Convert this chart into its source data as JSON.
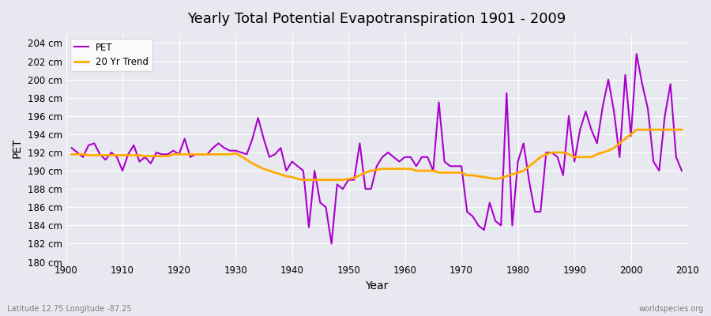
{
  "title": "Yearly Total Potential Evapotranspiration 1901 - 2009",
  "xlabel": "Year",
  "ylabel": "PET",
  "subtitle_left": "Latitude 12.75 Longitude -87.25",
  "subtitle_right": "worldspecies.org",
  "pet_color": "#aa00cc",
  "trend_color": "#ffaa00",
  "bg_color": "#e8e8f0",
  "plot_bg_color": "#e8e8f0",
  "ylim": [
    180,
    205
  ],
  "ytick_step": 2,
  "years": [
    1901,
    1902,
    1903,
    1904,
    1905,
    1906,
    1907,
    1908,
    1909,
    1910,
    1911,
    1912,
    1913,
    1914,
    1915,
    1916,
    1917,
    1918,
    1919,
    1920,
    1921,
    1922,
    1923,
    1924,
    1925,
    1926,
    1927,
    1928,
    1929,
    1930,
    1931,
    1932,
    1933,
    1934,
    1935,
    1936,
    1937,
    1938,
    1939,
    1940,
    1941,
    1942,
    1943,
    1944,
    1945,
    1946,
    1947,
    1948,
    1949,
    1950,
    1951,
    1952,
    1953,
    1954,
    1955,
    1956,
    1957,
    1958,
    1959,
    1960,
    1961,
    1962,
    1963,
    1964,
    1965,
    1966,
    1967,
    1968,
    1969,
    1970,
    1971,
    1972,
    1973,
    1974,
    1975,
    1976,
    1977,
    1978,
    1979,
    1980,
    1981,
    1982,
    1983,
    1984,
    1985,
    1986,
    1987,
    1988,
    1989,
    1990,
    1991,
    1992,
    1993,
    1994,
    1995,
    1996,
    1997,
    1998,
    1999,
    2000,
    2001,
    2002,
    2003,
    2004,
    2005,
    2006,
    2007,
    2008,
    2009
  ],
  "pet_values": [
    192.5,
    192.0,
    191.5,
    192.8,
    193.0,
    191.8,
    191.2,
    192.0,
    191.5,
    190.0,
    191.8,
    192.8,
    191.0,
    191.5,
    190.8,
    192.0,
    191.8,
    191.8,
    192.2,
    191.8,
    193.5,
    191.5,
    191.8,
    191.8,
    191.8,
    192.5,
    193.0,
    192.5,
    192.2,
    192.2,
    192.0,
    191.8,
    193.5,
    195.8,
    193.5,
    191.5,
    191.8,
    192.5,
    190.0,
    191.0,
    190.5,
    190.0,
    183.8,
    190.0,
    186.5,
    186.0,
    182.0,
    188.5,
    188.0,
    189.0,
    189.0,
    193.0,
    188.0,
    188.0,
    190.5,
    191.5,
    192.0,
    191.5,
    191.0,
    191.5,
    191.5,
    190.5,
    191.5,
    191.5,
    190.0,
    197.5,
    191.0,
    190.5,
    190.5,
    190.5,
    185.5,
    185.0,
    184.0,
    183.5,
    186.5,
    184.5,
    184.0,
    198.5,
    184.0,
    191.0,
    193.0,
    188.8,
    185.5,
    185.5,
    192.0,
    192.0,
    191.5,
    189.5,
    196.0,
    191.0,
    194.5,
    196.5,
    194.5,
    193.0,
    197.0,
    200.0,
    196.5,
    191.5,
    200.5,
    193.8,
    202.8,
    199.5,
    196.8,
    191.0,
    190.0,
    196.0,
    199.5,
    191.5,
    190.0
  ],
  "trend_values": [
    191.8,
    191.8,
    191.8,
    191.7,
    191.7,
    191.7,
    191.7,
    191.7,
    191.7,
    191.7,
    191.7,
    191.7,
    191.7,
    191.6,
    191.6,
    191.6,
    191.6,
    191.6,
    191.8,
    191.8,
    191.8,
    191.8,
    191.8,
    191.8,
    191.8,
    191.8,
    191.8,
    191.8,
    191.8,
    191.9,
    191.6,
    191.2,
    190.8,
    190.5,
    190.2,
    190.0,
    189.8,
    189.6,
    189.4,
    189.3,
    189.1,
    189.0,
    189.0,
    189.0,
    189.0,
    189.0,
    189.0,
    189.0,
    189.0,
    189.1,
    189.2,
    189.5,
    189.8,
    190.0,
    190.1,
    190.2,
    190.2,
    190.2,
    190.2,
    190.2,
    190.2,
    190.0,
    190.0,
    190.0,
    190.0,
    189.8,
    189.8,
    189.8,
    189.8,
    189.8,
    189.5,
    189.5,
    189.4,
    189.3,
    189.2,
    189.1,
    189.2,
    189.4,
    189.6,
    189.8,
    190.0,
    190.5,
    191.0,
    191.5,
    191.8,
    192.0,
    192.0,
    192.0,
    191.8,
    191.5,
    191.5,
    191.5,
    191.5,
    191.8,
    192.0,
    192.2,
    192.5,
    193.0,
    193.5,
    194.0,
    194.5,
    194.5,
    194.5,
    194.5,
    194.5,
    194.5,
    194.5,
    194.5,
    194.5
  ],
  "legend_pet_label": "PET",
  "legend_trend_label": "20 Yr Trend",
  "pet_linewidth": 1.5,
  "trend_linewidth": 2.0
}
